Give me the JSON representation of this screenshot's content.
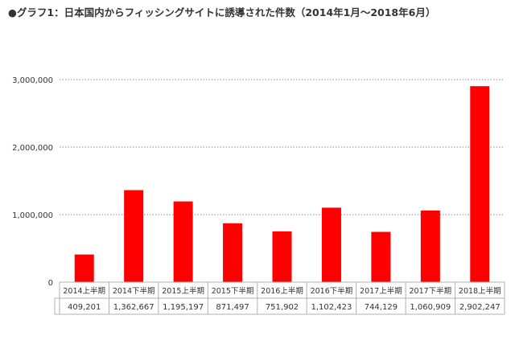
{
  "chart_data": {
    "type": "bar",
    "title": "●グラフ1：日本国内からフィッシングサイトに誘導された件数（2014年1月～2018年6月）",
    "xlabel": "",
    "ylabel": "",
    "categories": [
      "2014上半期",
      "2014下半期",
      "2015上半期",
      "2015下半期",
      "2016上半期",
      "2016下半期",
      "2017上半期",
      "2017下半期",
      "2018上半期"
    ],
    "values": [
      409201,
      1362667,
      1195197,
      871497,
      751902,
      1102423,
      744129,
      1060909,
      2902247
    ],
    "value_labels": [
      "409,201",
      "1,362,667",
      "1,195,197",
      "871,497",
      "751,902",
      "1,102,423",
      "744,129",
      "1,060,909",
      "2,902,247"
    ],
    "ylim": [
      0,
      3000000
    ],
    "yticks": [
      0,
      1000000,
      2000000,
      3000000
    ],
    "ytick_labels": [
      "0",
      "1,000,000",
      "2,000,000",
      "3,000,000"
    ],
    "grid": "horizontal dotted",
    "legend": "none",
    "data_table": "below-chart",
    "bar_color": "#ff0000"
  }
}
